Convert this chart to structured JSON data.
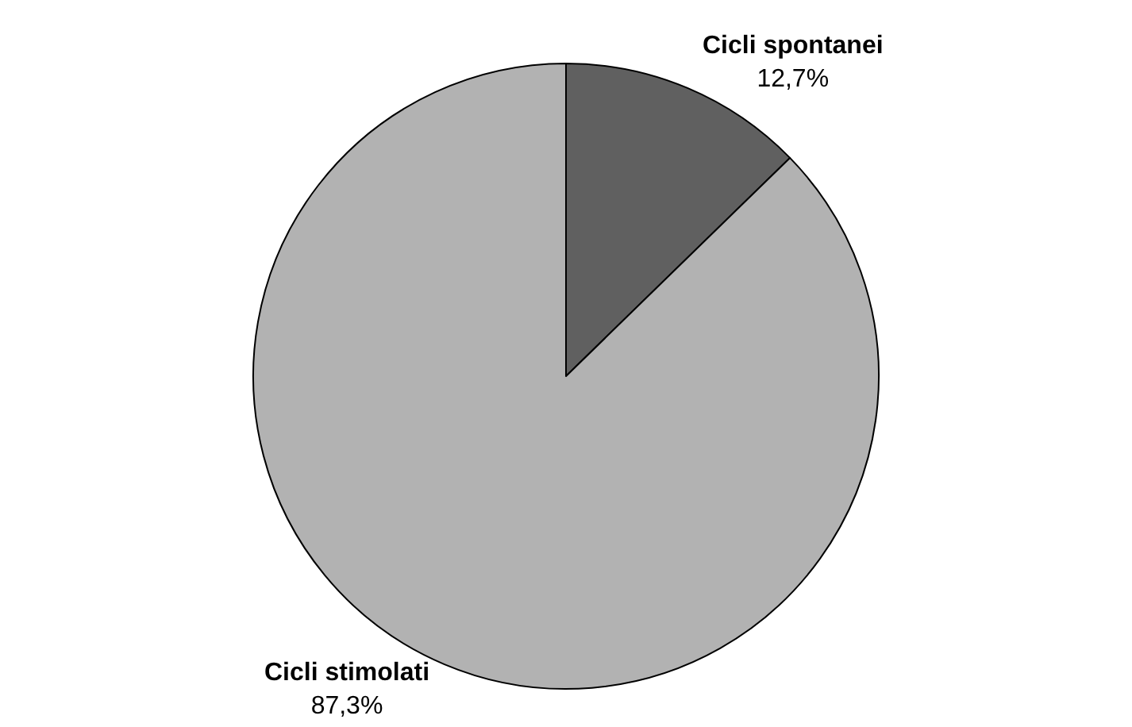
{
  "chart_data": {
    "type": "pie",
    "categories": [
      "Cicli spontanei",
      "Cicli stimolati"
    ],
    "values": [
      12.7,
      87.3
    ],
    "value_labels": [
      "12,7%",
      "87,3%"
    ],
    "colors": [
      "#606060",
      "#b2b2b2"
    ],
    "legend": false
  }
}
